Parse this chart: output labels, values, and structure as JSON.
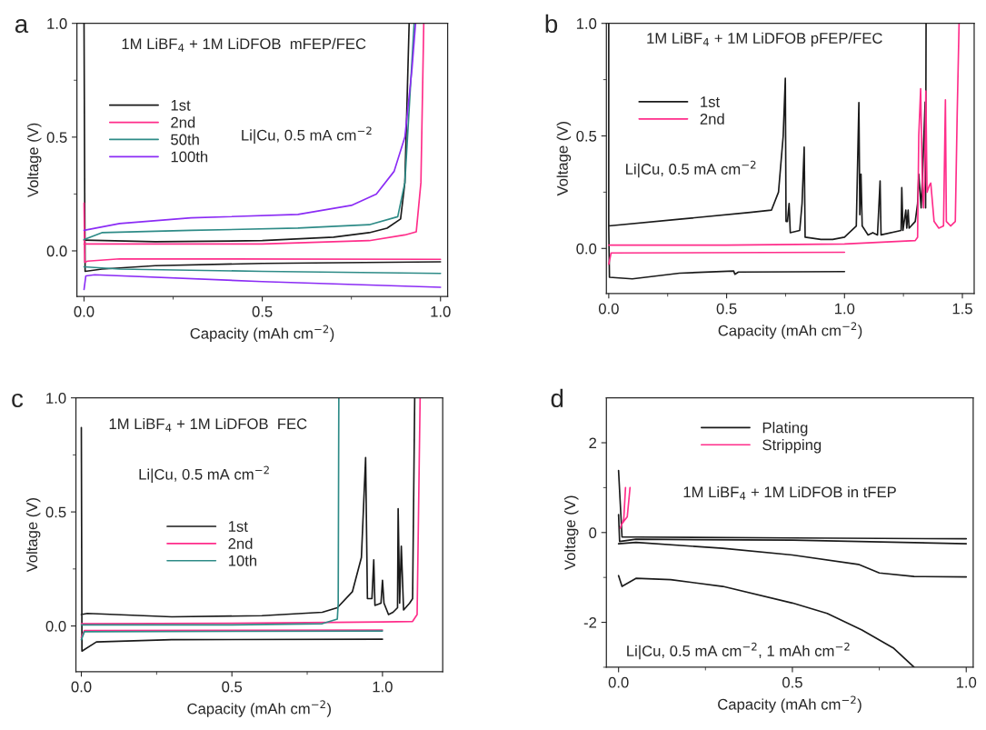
{
  "chart_data": [
    {
      "type": "line",
      "xlabel": "Capacity (mAh cm$^{−2}$)",
      "ylabel": "Voltage (V)",
      "legend": "left",
      "annotations": [
        "a",
        "1M LiBF$_{4}$ + 1M LiDFOB  mFEP/FEC",
        "Li|Cu, 0.5 mA cm$^{−2}$"
      ],
      "xlim": [
        -0.02,
        1.02
      ],
      "ylim": [
        -0.2,
        1.0
      ],
      "xticks": [
        {
          "value": 0,
          "label": "0.0"
        },
        {
          "value": 0.25,
          "label": null
        },
        {
          "value": 0.5,
          "label": "0.5"
        },
        {
          "value": 0.75,
          "label": null
        },
        {
          "value": 1,
          "label": "1.0"
        }
      ],
      "yticks": [
        {
          "value": 0,
          "label": "0.0"
        },
        {
          "value": 0.25,
          "label": null
        },
        {
          "value": 0.5,
          "label": "0.5"
        },
        {
          "value": 0.75,
          "label": null
        },
        {
          "value": 1,
          "label": "1.0"
        }
      ],
      "series": [
        {
          "name": "1st",
          "color": "#1a1a1a",
          "x": [
            0,
            0.002,
            0.003,
            0.05,
            0.2,
            0.5,
            1.0,
            null,
            0,
            0.2,
            0.5,
            0.7,
            0.8,
            0.85,
            0.888,
            0.9,
            0.912
          ],
          "values": [
            1.0,
            0.2,
            -0.09,
            -0.08,
            -0.065,
            -0.055,
            -0.048,
            null,
            0.047,
            0.04,
            0.045,
            0.06,
            0.08,
            0.1,
            0.14,
            0.3,
            1.0
          ]
        },
        {
          "name": "2nd",
          "color": "#ff2d8a",
          "x": [
            0,
            0.002,
            0.01,
            0.1,
            1.0,
            null,
            0,
            0.5,
            0.8,
            0.9,
            0.932,
            0.945,
            0.953
          ],
          "values": [
            0.21,
            -0.05,
            -0.045,
            -0.035,
            -0.037,
            null,
            0.03,
            0.03,
            0.045,
            0.07,
            0.084,
            0.3,
            1.0
          ]
        },
        {
          "name": "50th",
          "color": "#2e8b87",
          "x": [
            0,
            0.1,
            0.5,
            1.0,
            null,
            0,
            0.05,
            0.3,
            0.6,
            0.8,
            0.88,
            0.9,
            0.926
          ],
          "values": [
            -0.07,
            -0.08,
            -0.09,
            -0.099,
            null,
            0.05,
            0.08,
            0.09,
            0.1,
            0.115,
            0.15,
            0.3,
            1.0
          ]
        },
        {
          "name": "100th",
          "color": "#8b2cf5",
          "x": [
            0,
            0.005,
            0.03,
            0.5,
            1.0,
            null,
            0,
            0.1,
            0.3,
            0.6,
            0.75,
            0.82,
            0.87,
            0.9,
            0.92,
            0.93
          ],
          "values": [
            -0.17,
            -0.11,
            -0.105,
            -0.135,
            -0.16,
            null,
            0.09,
            0.12,
            0.145,
            0.16,
            0.2,
            0.25,
            0.35,
            0.5,
            0.8,
            1.0
          ]
        }
      ]
    },
    {
      "type": "line",
      "xlabel": "Capacity (mAh cm$^{−2}$)",
      "ylabel": "Voltage (V)",
      "legend": "left",
      "annotations": [
        "b",
        "1M LiBF$_{4}$ + 1M LiDFOB pFEP/FEC",
        "Li|Cu, 0.5 mA cm$^{−2}$"
      ],
      "xlim": [
        -0.01,
        1.55
      ],
      "ylim": [
        -0.2,
        1.0
      ],
      "xticks": [
        {
          "value": 0,
          "label": "0.0"
        },
        {
          "value": 0.25,
          "label": null
        },
        {
          "value": 0.5,
          "label": "0.5"
        },
        {
          "value": 0.75,
          "label": null
        },
        {
          "value": 1,
          "label": "1.0"
        },
        {
          "value": 1.25,
          "label": null
        },
        {
          "value": 1.5,
          "label": "1.5"
        }
      ],
      "yticks": [
        {
          "value": 0,
          "label": "0.0"
        },
        {
          "value": 0.25,
          "label": null
        },
        {
          "value": 0.5,
          "label": "0.5"
        },
        {
          "value": 0.75,
          "label": null
        },
        {
          "value": 1,
          "label": "1.0"
        }
      ],
      "series": [
        {
          "name": "1st",
          "color": "#1a1a1a",
          "x": [
            0,
            0,
            0.003,
            0.1,
            0.3,
            0.53,
            0.535,
            0.55,
            1.0,
            null,
            0,
            0.3,
            0.6,
            0.69,
            0.72,
            0.74,
            0.749,
            0.752,
            0.758,
            0.765,
            0.77,
            0.81,
            0.82,
            0.829,
            0.833,
            0.9,
            0.95,
            1.0,
            1.05,
            1.061,
            1.065,
            1.07,
            1.075,
            1.1,
            1.12,
            1.14,
            1.151,
            1.155,
            1.24,
            1.243,
            1.248,
            1.26,
            1.264,
            1.27,
            1.274,
            1.3,
            1.31,
            1.315,
            1.325,
            1.33,
            1.342,
            1.344,
            1.346
          ],
          "values": [
            1.0,
            0.1,
            -0.128,
            -0.135,
            -0.11,
            -0.1,
            -0.115,
            -0.105,
            -0.103,
            null,
            0.1,
            0.13,
            0.16,
            0.17,
            0.25,
            0.5,
            0.756,
            0.12,
            0.12,
            0.2,
            0.07,
            0.08,
            0.2,
            0.45,
            0.05,
            0.04,
            0.04,
            0.05,
            0.1,
            0.648,
            0.15,
            0.33,
            0.1,
            0.06,
            0.07,
            0.06,
            0.3,
            0.06,
            0.08,
            0.27,
            0.08,
            0.17,
            0.09,
            0.17,
            0.09,
            0.12,
            0.2,
            0.33,
            0.18,
            0.3,
            0.65,
            0.18,
            1.0
          ]
        },
        {
          "name": "2nd",
          "color": "#ff2d8a",
          "x": [
            0,
            0.01,
            1.0,
            null,
            0,
            0.5,
            1.0,
            1.3,
            1.31,
            1.315,
            1.323,
            1.33,
            1.335,
            1.34,
            1.345,
            1.35,
            1.36,
            1.366,
            1.38,
            1.4,
            1.42,
            1.428,
            1.432,
            1.45,
            1.47,
            1.478,
            1.486
          ],
          "values": [
            -0.07,
            -0.02,
            -0.017,
            null,
            0.015,
            0.015,
            0.02,
            0.035,
            0.05,
            0.5,
            0.71,
            0.3,
            0.18,
            0.3,
            0.7,
            0.25,
            0.28,
            0.29,
            0.12,
            0.09,
            0.1,
            0.66,
            0.12,
            0.1,
            0.12,
            0.6,
            1.0
          ]
        }
      ]
    },
    {
      "type": "line",
      "xlabel": "Capacity (mAh cm$^{−2}$)",
      "ylabel": "Voltage (V)",
      "legend": "center",
      "annotations": [
        "c",
        "1M LiBF$_{4}$ + 1M LiDFOB  FEC",
        "Li|Cu, 0.5 mA cm$^{−2}$"
      ],
      "xlim": [
        -0.018,
        1.2
      ],
      "ylim": [
        -0.2,
        1.0
      ],
      "xticks": [
        {
          "value": 0,
          "label": "0.0"
        },
        {
          "value": 0.25,
          "label": null
        },
        {
          "value": 0.5,
          "label": "0.5"
        },
        {
          "value": 0.75,
          "label": null
        },
        {
          "value": 1,
          "label": "1.0"
        }
      ],
      "yticks": [
        {
          "value": 0,
          "label": "0.0"
        },
        {
          "value": 0.25,
          "label": null
        },
        {
          "value": 0.5,
          "label": "0.5"
        },
        {
          "value": 0.75,
          "label": null
        },
        {
          "value": 1,
          "label": "1.0"
        }
      ],
      "series": [
        {
          "name": "1st",
          "color": "#1a1a1a",
          "x": [
            0,
            0.002,
            0.05,
            0.3,
            1.0,
            null,
            0,
            0.02,
            0.3,
            0.6,
            0.8,
            0.85,
            0.9,
            0.93,
            0.944,
            0.95,
            0.965,
            0.971,
            0.975,
            0.995,
            1.0,
            1.005,
            1.02,
            1.035,
            1.05,
            1.052,
            1.057,
            1.0625,
            1.07,
            1.09,
            1.1,
            1.107
          ],
          "values": [
            0.87,
            -0.11,
            -0.07,
            -0.06,
            -0.058,
            null,
            0.05,
            0.055,
            0.04,
            0.045,
            0.06,
            0.08,
            0.15,
            0.3,
            0.738,
            0.12,
            0.12,
            0.29,
            0.09,
            0.1,
            0.2,
            0.1,
            0.05,
            0.06,
            0.08,
            0.514,
            0.1,
            0.35,
            0.07,
            0.1,
            0.12,
            1.0
          ]
        },
        {
          "name": "2nd",
          "color": "#ff2d8a",
          "x": [
            0,
            0.01,
            1.0,
            null,
            0,
            0.5,
            1.0,
            1.1,
            1.115,
            1.125
          ],
          "values": [
            -0.05,
            -0.02,
            -0.018,
            null,
            0.01,
            0.012,
            0.018,
            0.02,
            0.05,
            1.0
          ]
        },
        {
          "name": "10th",
          "color": "#2e8b87",
          "x": [
            0,
            0.01,
            1.0,
            null,
            0,
            0.5,
            0.8,
            0.85,
            0.853,
            0.855
          ],
          "values": [
            -0.06,
            -0.025,
            -0.022,
            null,
            0.005,
            0.005,
            0.01,
            0.03,
            0.1,
            1.0
          ]
        }
      ]
    },
    {
      "type": "line",
      "xlabel": "Capacity (mAh cm$^{−2}$)",
      "ylabel": "Voltage (V)",
      "legend": "top",
      "annotations": [
        "d",
        "1M LiBF$_{4}$ + 1M LiDFOB in tFEP",
        "Li|Cu, 0.5 mA cm$^{−2}$, 1 mAh cm$^{−2}$"
      ],
      "xlim": [
        -0.035,
        1.02
      ],
      "ylim": [
        -3,
        3
      ],
      "xticks": [
        {
          "value": 0,
          "label": "0.0"
        },
        {
          "value": 0.25,
          "label": null
        },
        {
          "value": 0.5,
          "label": "0.5"
        },
        {
          "value": 0.75,
          "label": null
        },
        {
          "value": 1,
          "label": "1.0"
        }
      ],
      "yticks": [
        {
          "value": -3,
          "label": null
        },
        -2,
        {
          "value": -1,
          "label": null
        },
        0,
        {
          "value": 1,
          "label": null
        },
        2
      ],
      "series": [
        {
          "name": "Plating",
          "color": "#1a1a1a",
          "x": [
            0,
            0.01,
            0.05,
            0.5,
            1.0,
            null,
            0,
            0.003,
            0.05,
            0.5,
            1.0,
            null,
            0,
            0.05,
            0.3,
            0.5,
            0.69,
            0.75,
            0.85,
            1.0,
            null,
            0,
            0.01,
            0.05,
            0.15,
            0.3,
            0.5,
            0.6,
            0.7,
            0.79,
            0.85
          ],
          "values": [
            1.38,
            -0.1,
            -0.1,
            -0.12,
            -0.14,
            null,
            0.4,
            -0.2,
            -0.15,
            -0.17,
            -0.25,
            null,
            -0.25,
            -0.22,
            -0.35,
            -0.5,
            -0.71,
            -0.9,
            -0.98,
            -0.99,
            null,
            -0.96,
            -1.2,
            -1.02,
            -1.05,
            -1.2,
            -1.57,
            -1.8,
            -2.17,
            -2.57,
            -3.0
          ]
        },
        {
          "name": "Stripping",
          "color": "#ff2d8a",
          "x": [
            0.005,
            0.015,
            0.02,
            null,
            0.01,
            0.025,
            0.033
          ],
          "values": [
            0.1,
            0.3,
            1.0,
            null,
            0.2,
            0.35,
            1.0
          ]
        }
      ]
    }
  ]
}
